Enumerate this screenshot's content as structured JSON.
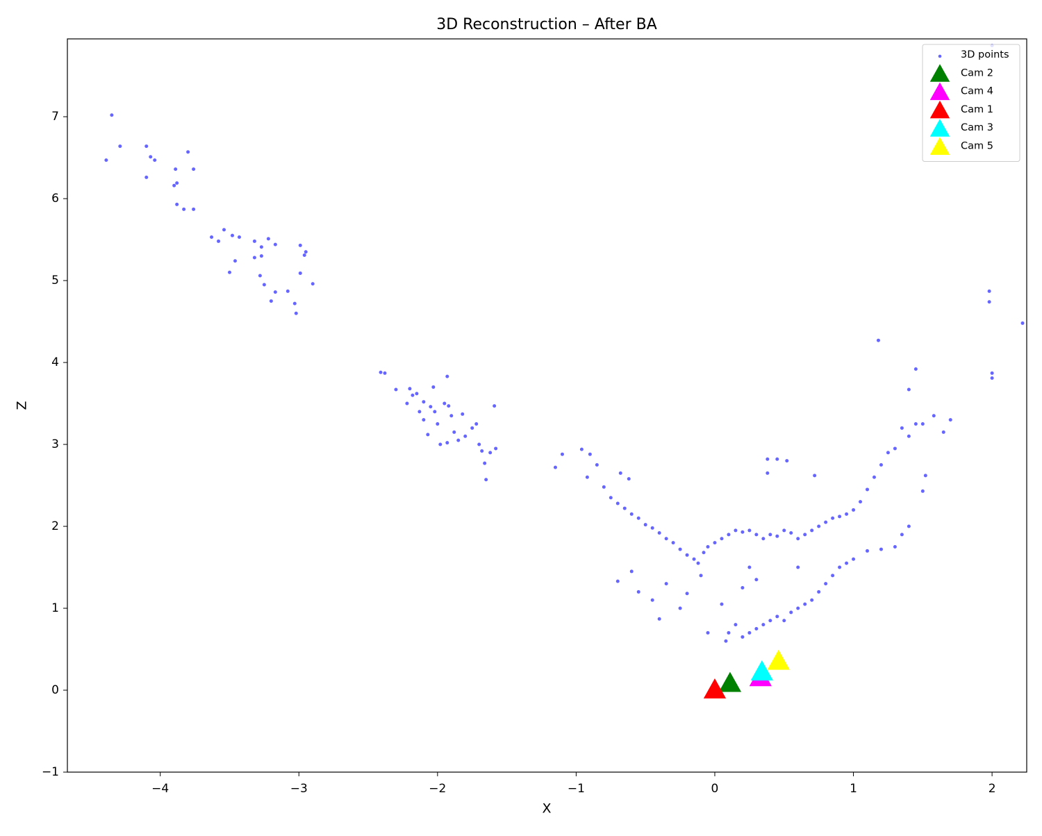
{
  "chart_data": {
    "type": "scatter",
    "title": "3D Reconstruction – After BA",
    "x_label": "X",
    "y_label": "Z",
    "xlim": [
      -4.67,
      2.25
    ],
    "ylim": [
      -1.0,
      7.95
    ],
    "xticks": [
      {
        "value": -4,
        "label": "−4"
      },
      {
        "value": -3,
        "label": "−3"
      },
      {
        "value": -2,
        "label": "−2"
      },
      {
        "value": -1,
        "label": "−1"
      },
      0,
      1,
      2
    ],
    "yticks": [
      {
        "value": -1,
        "label": "−1"
      },
      0,
      1,
      2,
      3,
      4,
      5,
      6,
      7
    ],
    "legend": "upper right",
    "series": [
      {
        "name": "3D points",
        "color": "#0000ff",
        "marker": "point",
        "x": [
          -4.35,
          -4.29,
          -4.39,
          -4.1,
          -4.07,
          -4.1,
          -4.04,
          -3.89,
          -3.9,
          -3.88,
          -3.8,
          -3.76,
          -3.88,
          -3.83,
          -3.76,
          -3.63,
          -3.58,
          -3.54,
          -3.48,
          -3.43,
          -3.46,
          -3.5,
          -3.32,
          -3.27,
          -3.22,
          -3.17,
          -3.32,
          -3.27,
          -3.28,
          -3.25,
          -3.2,
          -3.17,
          -3.08,
          -3.03,
          -3.02,
          -2.99,
          -2.96,
          -2.95,
          -2.99,
          -2.9,
          -2.41,
          -2.38,
          -2.3,
          -2.2,
          -2.18,
          -2.15,
          -2.22,
          -2.1,
          -2.13,
          -2.1,
          -2.05,
          -2.02,
          -2.0,
          -1.98,
          -1.95,
          -1.93,
          -1.92,
          -1.9,
          -1.88,
          -1.85,
          -1.82,
          -1.8,
          -1.75,
          -1.72,
          -1.7,
          -1.68,
          -1.66,
          -1.65,
          -1.62,
          -1.59,
          -1.58,
          -2.03,
          -1.93,
          -2.07,
          -1.15,
          -1.1,
          -0.96,
          -0.9,
          -0.85,
          -0.92,
          -0.8,
          -0.75,
          -0.7,
          -0.65,
          -0.6,
          -0.55,
          -0.5,
          -0.45,
          -0.4,
          -0.35,
          -0.3,
          -0.25,
          -0.2,
          -0.15,
          -0.12,
          -0.08,
          -0.05,
          0.0,
          0.05,
          0.1,
          0.15,
          0.2,
          0.25,
          0.3,
          0.35,
          0.4,
          0.45,
          0.5,
          0.55,
          0.6,
          0.65,
          0.7,
          0.75,
          0.8,
          0.85,
          0.9,
          0.95,
          1.0,
          1.05,
          1.1,
          1.15,
          1.2,
          1.25,
          1.3,
          1.35,
          1.4,
          1.45,
          1.45,
          1.5,
          1.58,
          1.65,
          1.7,
          1.18,
          1.98,
          1.98,
          2.0,
          2.0,
          2.22,
          2.0,
          1.4,
          -0.68,
          -0.62,
          -0.7,
          -0.6,
          -0.55,
          -0.45,
          -0.4,
          -0.35,
          -0.25,
          -0.2,
          -0.1,
          0.05,
          0.1,
          0.15,
          0.2,
          0.25,
          0.3,
          0.35,
          0.4,
          0.45,
          0.5,
          0.55,
          0.6,
          0.65,
          0.7,
          0.75,
          0.8,
          0.85,
          0.9,
          0.95,
          1.0,
          1.1,
          1.2,
          1.3,
          1.35,
          1.4,
          1.5,
          1.52,
          0.08,
          0.2,
          0.3,
          0.45,
          0.38,
          0.52,
          0.38,
          0.72,
          -0.05,
          0.6,
          0.25
        ],
        "values": [
          7.02,
          6.64,
          6.47,
          6.64,
          6.51,
          6.26,
          6.47,
          6.36,
          6.16,
          6.19,
          6.57,
          6.36,
          5.93,
          5.87,
          5.87,
          5.53,
          5.48,
          5.62,
          5.55,
          5.53,
          5.24,
          5.1,
          5.48,
          5.41,
          5.51,
          5.44,
          5.28,
          5.3,
          5.06,
          4.95,
          4.75,
          4.86,
          4.87,
          4.72,
          4.6,
          5.43,
          5.31,
          5.35,
          5.09,
          4.96,
          3.88,
          3.87,
          3.67,
          3.68,
          3.6,
          3.62,
          3.5,
          3.52,
          3.4,
          3.3,
          3.46,
          3.4,
          3.25,
          3.0,
          3.5,
          3.83,
          3.47,
          3.35,
          3.15,
          3.05,
          3.37,
          3.1,
          3.2,
          3.25,
          3.0,
          2.92,
          2.77,
          2.57,
          2.9,
          3.47,
          2.95,
          3.7,
          3.02,
          3.12,
          2.72,
          2.88,
          2.94,
          2.88,
          2.75,
          2.6,
          2.48,
          2.35,
          2.28,
          2.22,
          2.15,
          2.1,
          2.02,
          1.98,
          1.92,
          1.85,
          1.8,
          1.72,
          1.65,
          1.6,
          1.55,
          1.68,
          1.75,
          1.8,
          1.85,
          1.9,
          1.95,
          1.93,
          1.95,
          1.9,
          1.85,
          1.9,
          1.88,
          1.95,
          1.92,
          1.85,
          1.9,
          1.95,
          2.0,
          2.05,
          2.1,
          2.12,
          2.15,
          2.2,
          2.3,
          2.45,
          2.6,
          2.75,
          2.9,
          2.95,
          3.2,
          3.1,
          3.92,
          3.25,
          3.25,
          3.35,
          3.15,
          3.3,
          4.27,
          4.87,
          4.74,
          3.87,
          3.81,
          4.48,
          7.87,
          3.67,
          2.65,
          2.58,
          1.33,
          1.45,
          1.2,
          1.1,
          0.87,
          1.3,
          1.0,
          1.18,
          1.4,
          1.05,
          0.7,
          0.8,
          0.65,
          0.7,
          0.75,
          0.8,
          0.85,
          0.9,
          0.85,
          0.95,
          1.0,
          1.05,
          1.1,
          1.2,
          1.3,
          1.4,
          1.5,
          1.55,
          1.6,
          1.7,
          1.72,
          1.75,
          1.9,
          2.0,
          2.43,
          2.62,
          0.6,
          1.25,
          1.35,
          2.82,
          2.82,
          2.8,
          2.65,
          2.62,
          0.7,
          1.5,
          1.5
        ]
      },
      {
        "name": "Cam 2",
        "color": "#008000",
        "marker": "triangle",
        "x": [
          0.11
        ],
        "values": [
          0.08
        ]
      },
      {
        "name": "Cam 4",
        "color": "#ff00ff",
        "marker": "triangle",
        "x": [
          0.33
        ],
        "values": [
          0.15
        ]
      },
      {
        "name": "Cam 1",
        "color": "#ff0000",
        "marker": "triangle",
        "x": [
          0.0
        ],
        "values": [
          0.0
        ]
      },
      {
        "name": "Cam 3",
        "color": "#00ffff",
        "marker": "triangle",
        "x": [
          0.34
        ],
        "values": [
          0.22
        ]
      },
      {
        "name": "Cam 5",
        "color": "#ffff00",
        "marker": "triangle",
        "x": [
          0.46
        ],
        "values": [
          0.35
        ]
      }
    ]
  }
}
